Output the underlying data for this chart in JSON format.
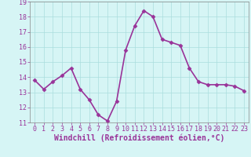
{
  "x": [
    0,
    1,
    2,
    3,
    4,
    5,
    6,
    7,
    8,
    9,
    10,
    11,
    12,
    13,
    14,
    15,
    16,
    17,
    18,
    19,
    20,
    21,
    22,
    23
  ],
  "y": [
    13.8,
    13.2,
    13.7,
    14.1,
    14.6,
    13.2,
    12.5,
    11.5,
    11.1,
    12.4,
    15.8,
    17.4,
    18.4,
    18.0,
    16.5,
    16.3,
    16.1,
    14.6,
    13.7,
    13.5,
    13.5,
    13.5,
    13.4,
    13.1
  ],
  "line_color": "#993399",
  "marker": "D",
  "marker_size": 2.5,
  "bg_color": "#d6f5f5",
  "grid_color": "#aadddd",
  "xlabel": "Windchill (Refroidissement éolien,°C)",
  "ylim": [
    11,
    19
  ],
  "xlim": [
    -0.5,
    23.5
  ],
  "yticks": [
    11,
    12,
    13,
    14,
    15,
    16,
    17,
    18,
    19
  ],
  "xticks": [
    0,
    1,
    2,
    3,
    4,
    5,
    6,
    7,
    8,
    9,
    10,
    11,
    12,
    13,
    14,
    15,
    16,
    17,
    18,
    19,
    20,
    21,
    22,
    23
  ],
  "tick_color": "#993399",
  "tick_fontsize": 6,
  "xlabel_fontsize": 7,
  "line_width": 1.2,
  "spine_color": "#888888"
}
